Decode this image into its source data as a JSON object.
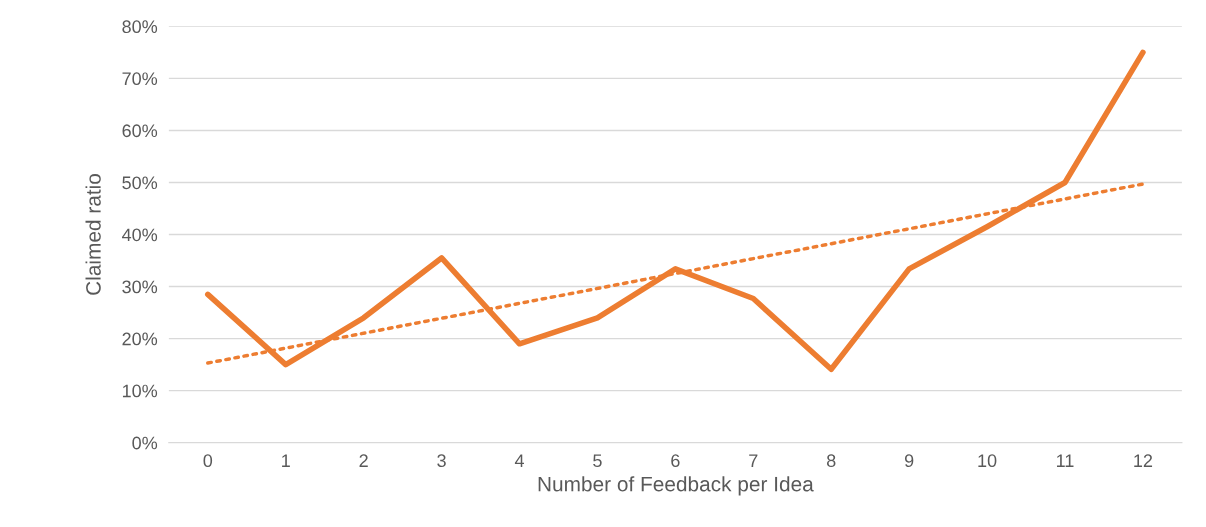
{
  "chart_data": {
    "type": "line",
    "xlabel": "Number of Feedback per Idea",
    "ylabel": "Claimed ratio",
    "x": [
      0,
      1,
      2,
      3,
      4,
      5,
      6,
      7,
      8,
      9,
      10,
      11,
      12
    ],
    "xlim": [
      -0.5,
      12.5
    ],
    "xticks": [
      0,
      1,
      2,
      3,
      4,
      5,
      6,
      7,
      8,
      9,
      10,
      11,
      12
    ],
    "ylim": [
      0,
      80
    ],
    "yticks": [
      {
        "value": 0,
        "label": "0%"
      },
      {
        "value": 10,
        "label": "10%"
      },
      {
        "value": 20,
        "label": "20%"
      },
      {
        "value": 30,
        "label": "30%"
      },
      {
        "value": 40,
        "label": "40%"
      },
      {
        "value": 50,
        "label": "50%"
      },
      {
        "value": 60,
        "label": "60%"
      },
      {
        "value": 70,
        "label": "70%"
      },
      {
        "value": 80,
        "label": "80%"
      }
    ],
    "grid": "y",
    "marker": "none",
    "series": [
      {
        "color": "#ed7d31",
        "line_style": "solid",
        "values": [
          28.5,
          15,
          24,
          35.5,
          19,
          24,
          33.4,
          27.7,
          14.1,
          33.4,
          41.5,
          50,
          75
        ]
      },
      {
        "type": "line",
        "color": "#ed7d31",
        "line_style": "dotted",
        "x": [
          0,
          12
        ],
        "values": [
          15.3,
          49.7
        ]
      }
    ]
  }
}
